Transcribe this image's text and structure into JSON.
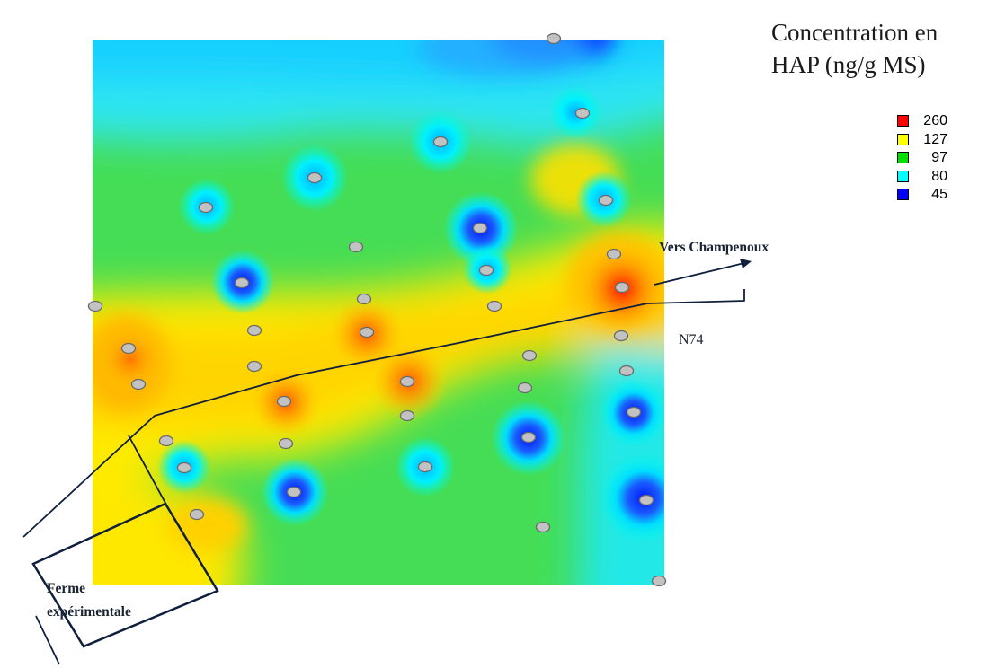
{
  "legend": {
    "title_line1": "Concentration en",
    "title_line2": "HAP (ng/g MS)",
    "items": [
      {
        "value": "260",
        "color": "#ff0000"
      },
      {
        "value": "127",
        "color": "#ffff00"
      },
      {
        "value": "97",
        "color": "#00e000"
      },
      {
        "value": "80",
        "color": "#00ffff"
      },
      {
        "value": "45",
        "color": "#0000ff"
      }
    ]
  },
  "labels": {
    "vers_champenoux": "Vers Champenoux",
    "road": "N74",
    "ferme_line1": "Ferme",
    "ferme_line2": "expérimentale"
  },
  "colors": {
    "sample_point_fill": "#c2c2c2",
    "sample_point_stroke": "#6a6a6a",
    "road_line": "#0f1f3d",
    "map_background": "#45dd55"
  }
}
